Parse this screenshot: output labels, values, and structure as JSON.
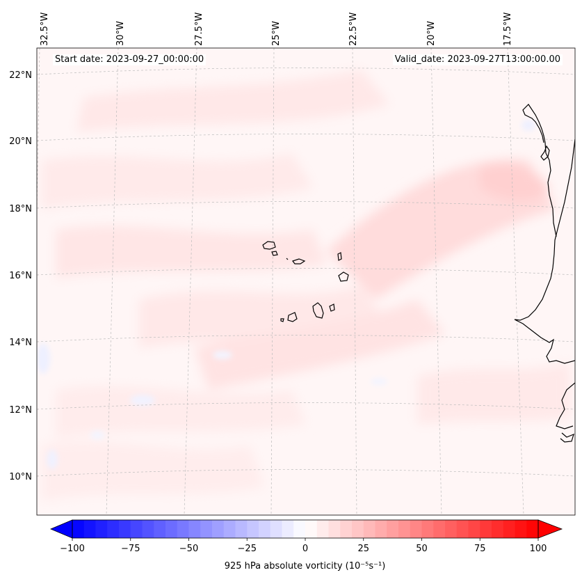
{
  "map": {
    "start_date_label": "Start date: 2023-09-27_00:00:00",
    "valid_date_label": "Valid_date: 2023-09-27T13:00:00.00",
    "longitude_labels": [
      "32.5°W",
      "30°W",
      "27.5°W",
      "25°W",
      "22.5°W",
      "20°W",
      "17.5°W"
    ],
    "latitude_labels": [
      "22°N",
      "20°N",
      "18°N",
      "16°N",
      "14°N",
      "12°N",
      "10°N"
    ],
    "coastline_color": "#000000",
    "gridline_color": "#bbbbbb",
    "field": "925 hPa absolute vorticity"
  },
  "colorbar": {
    "ticks": [
      "−100",
      "−75",
      "−50",
      "−25",
      "0",
      "25",
      "50",
      "75",
      "100"
    ],
    "min": -100,
    "max": 100,
    "min_color": "#0000ff",
    "mid_color": "#ffffff",
    "max_color": "#ff0000",
    "title": "925 hPa absolute vorticity (10⁻⁵s⁻¹)"
  }
}
